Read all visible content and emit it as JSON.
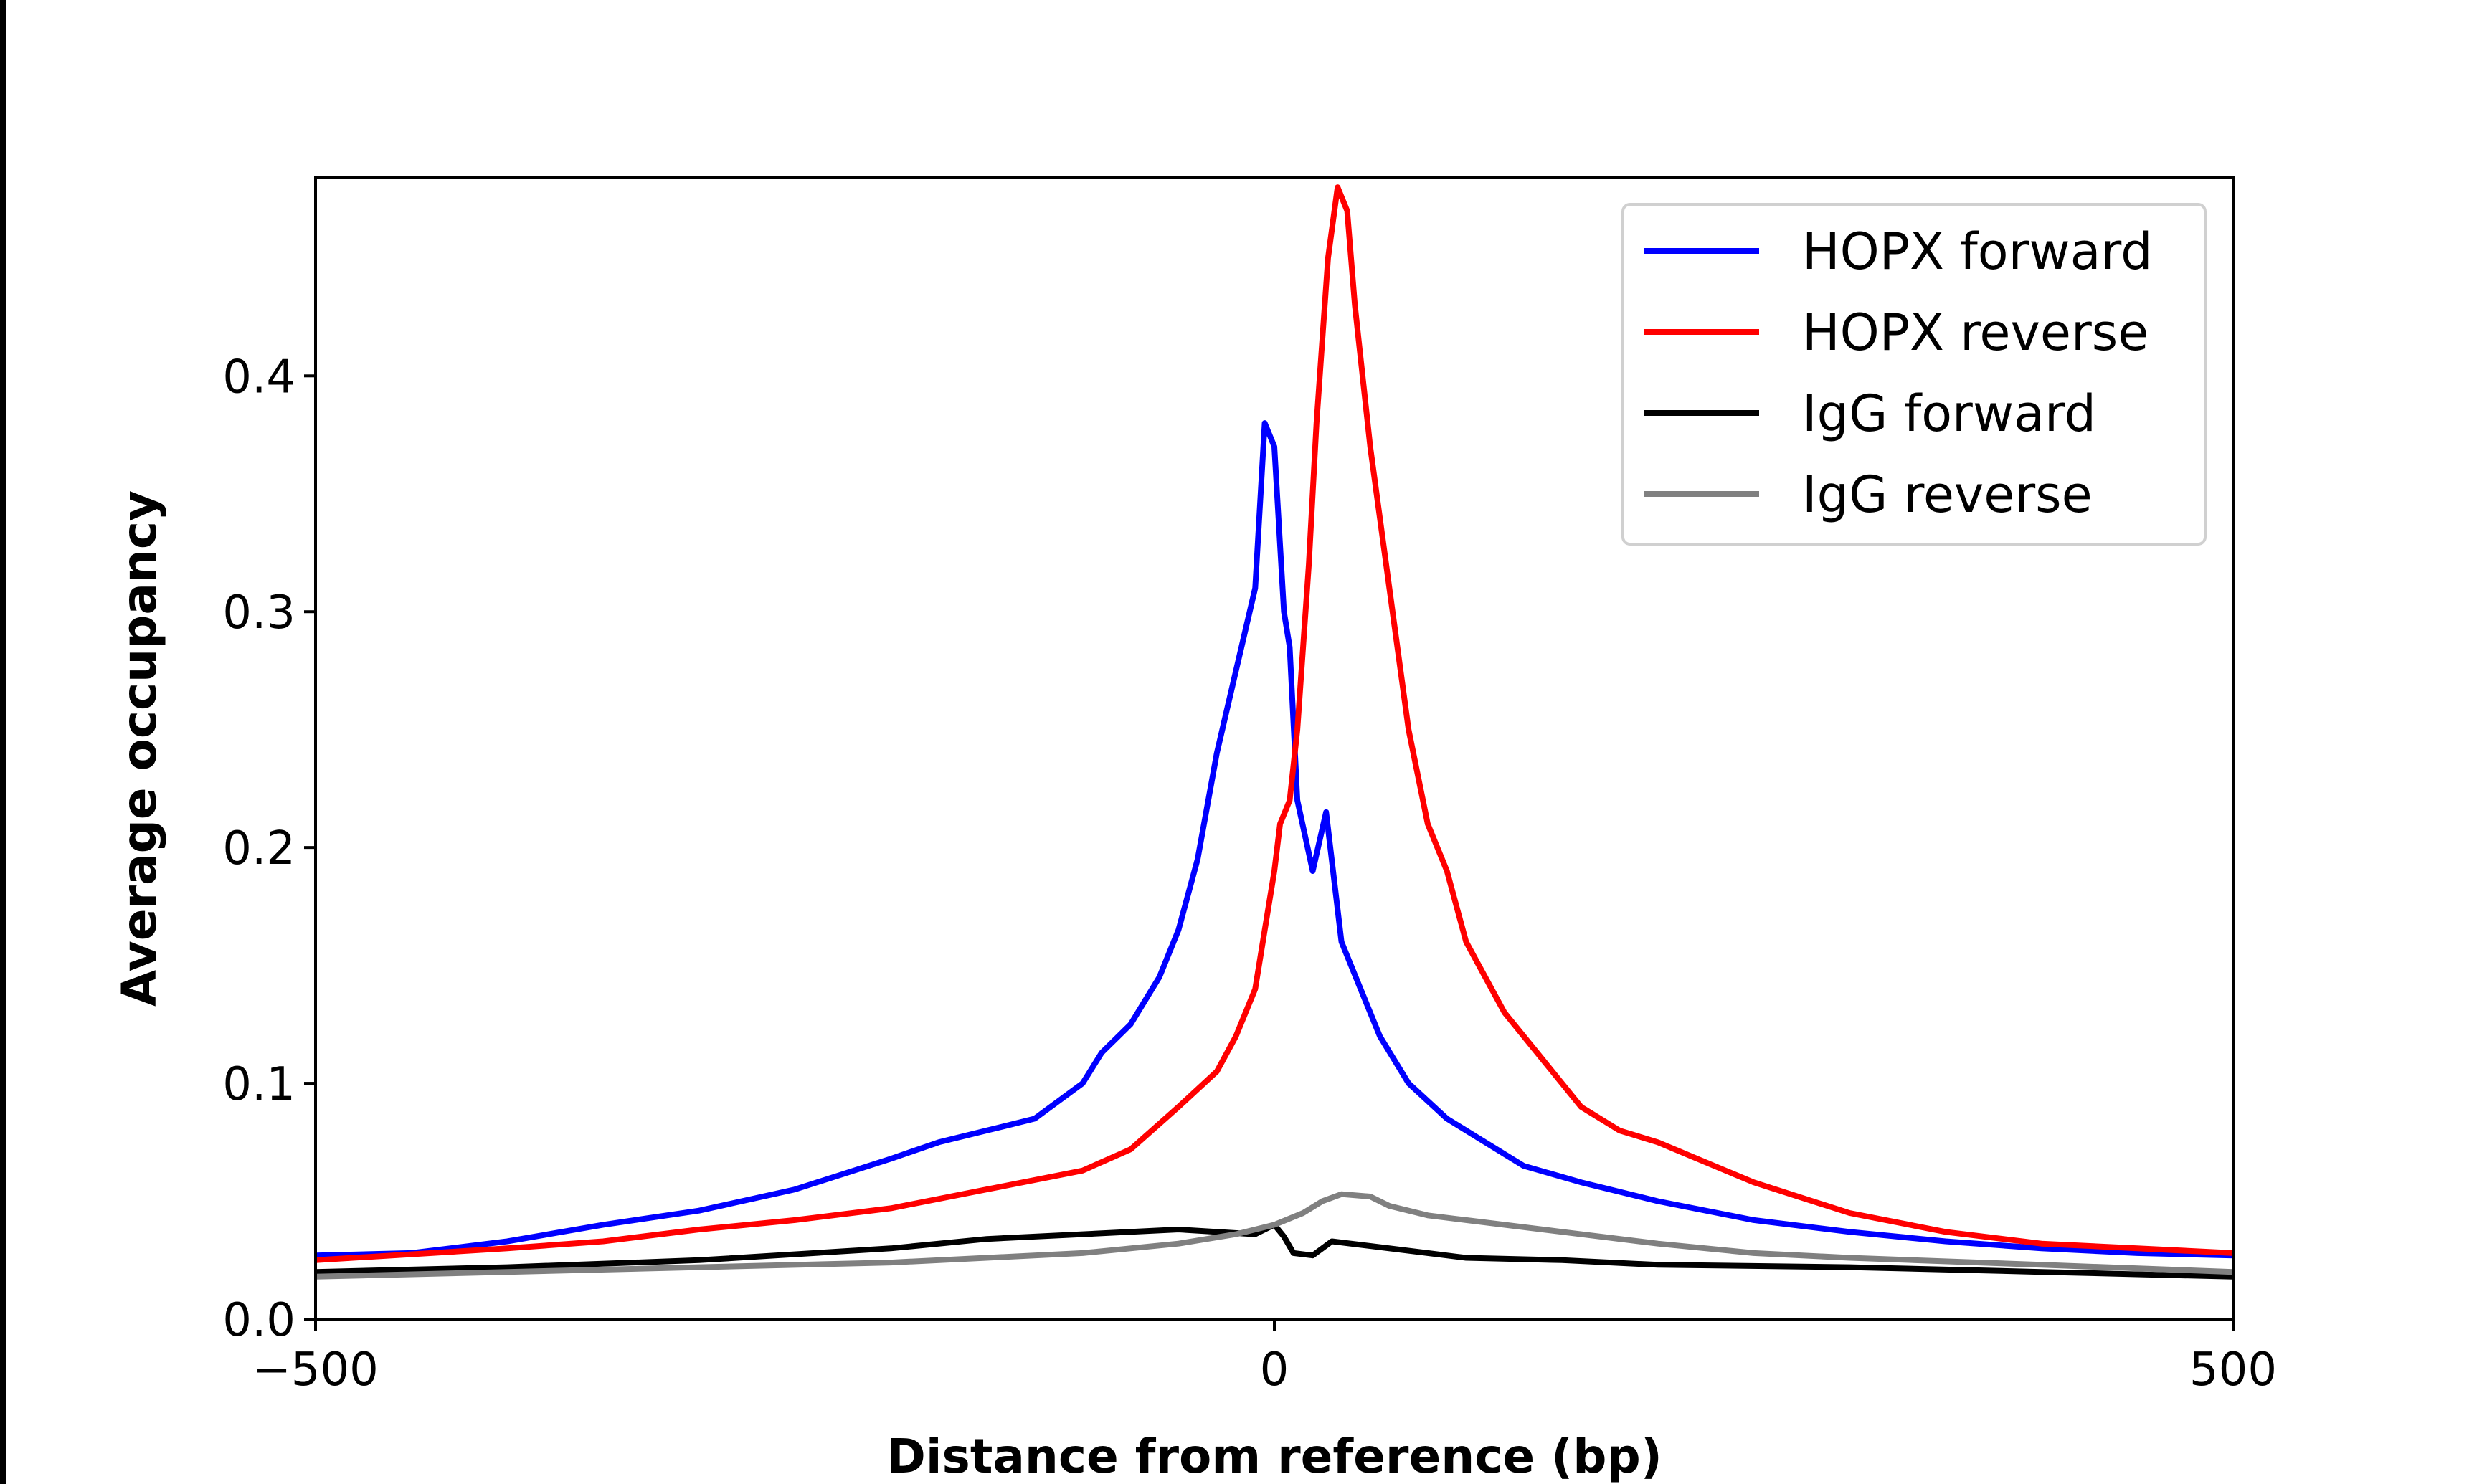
{
  "chart_data": {
    "type": "line",
    "title": "",
    "xlabel": "Distance from reference (bp)",
    "ylabel": "Average occupancy",
    "xlim": [
      -500,
      500
    ],
    "ylim": [
      0,
      0.484
    ],
    "xticks": [
      -500,
      0,
      500
    ],
    "xtick_labels": [
      "−500",
      "0",
      "500"
    ],
    "yticks": [
      0.0,
      0.1,
      0.2,
      0.3,
      0.4
    ],
    "ytick_labels": [
      "0.0",
      "0.1",
      "0.2",
      "0.3",
      "0.4"
    ],
    "grid": false,
    "legend_position": "top-right",
    "series": [
      {
        "name": "HOPX forward",
        "color": "#0000ff",
        "x": [
          -500,
          -450,
          -400,
          -350,
          -300,
          -250,
          -200,
          -175,
          -150,
          -125,
          -100,
          -90,
          -75,
          -60,
          -50,
          -40,
          -30,
          -20,
          -10,
          -5,
          0,
          5,
          8,
          12,
          20,
          27,
          35,
          45,
          55,
          70,
          90,
          110,
          130,
          160,
          200,
          250,
          300,
          350,
          400,
          450,
          500
        ],
        "y": [
          0.027,
          0.028,
          0.033,
          0.04,
          0.046,
          0.055,
          0.068,
          0.075,
          0.08,
          0.085,
          0.1,
          0.113,
          0.125,
          0.145,
          0.165,
          0.195,
          0.24,
          0.275,
          0.31,
          0.38,
          0.37,
          0.3,
          0.285,
          0.22,
          0.19,
          0.215,
          0.16,
          0.14,
          0.12,
          0.1,
          0.085,
          0.075,
          0.065,
          0.058,
          0.05,
          0.042,
          0.037,
          0.033,
          0.03,
          0.028,
          0.027
        ]
      },
      {
        "name": "HOPX reverse",
        "color": "#ff0000",
        "x": [
          -500,
          -400,
          -350,
          -300,
          -250,
          -200,
          -150,
          -100,
          -75,
          -50,
          -30,
          -20,
          -10,
          -5,
          0,
          3,
          8,
          12,
          18,
          22,
          28,
          33,
          38,
          42,
          50,
          60,
          70,
          80,
          90,
          100,
          120,
          140,
          160,
          180,
          200,
          250,
          300,
          350,
          400,
          450,
          500
        ],
        "y": [
          0.025,
          0.03,
          0.033,
          0.038,
          0.042,
          0.047,
          0.055,
          0.063,
          0.072,
          0.09,
          0.105,
          0.12,
          0.14,
          0.165,
          0.19,
          0.21,
          0.22,
          0.25,
          0.32,
          0.38,
          0.45,
          0.48,
          0.47,
          0.43,
          0.37,
          0.31,
          0.25,
          0.21,
          0.19,
          0.16,
          0.13,
          0.11,
          0.09,
          0.08,
          0.075,
          0.058,
          0.045,
          0.037,
          0.032,
          0.03,
          0.028
        ]
      },
      {
        "name": "IgG forward",
        "color": "#000000",
        "x": [
          -500,
          -400,
          -300,
          -200,
          -150,
          -100,
          -50,
          -10,
          0,
          5,
          10,
          20,
          30,
          50,
          80,
          100,
          150,
          200,
          300,
          400,
          500
        ],
        "y": [
          0.02,
          0.022,
          0.025,
          0.03,
          0.034,
          0.036,
          0.038,
          0.036,
          0.04,
          0.035,
          0.028,
          0.027,
          0.033,
          0.031,
          0.028,
          0.026,
          0.025,
          0.023,
          0.022,
          0.02,
          0.018
        ]
      },
      {
        "name": "IgG reverse",
        "color": "#808080",
        "x": [
          -500,
          -400,
          -300,
          -200,
          -150,
          -100,
          -50,
          -20,
          0,
          15,
          25,
          35,
          50,
          60,
          80,
          100,
          150,
          200,
          250,
          300,
          400,
          500
        ],
        "y": [
          0.018,
          0.02,
          0.022,
          0.024,
          0.026,
          0.028,
          0.032,
          0.036,
          0.04,
          0.045,
          0.05,
          0.053,
          0.052,
          0.048,
          0.044,
          0.042,
          0.037,
          0.032,
          0.028,
          0.026,
          0.023,
          0.02
        ]
      }
    ]
  }
}
